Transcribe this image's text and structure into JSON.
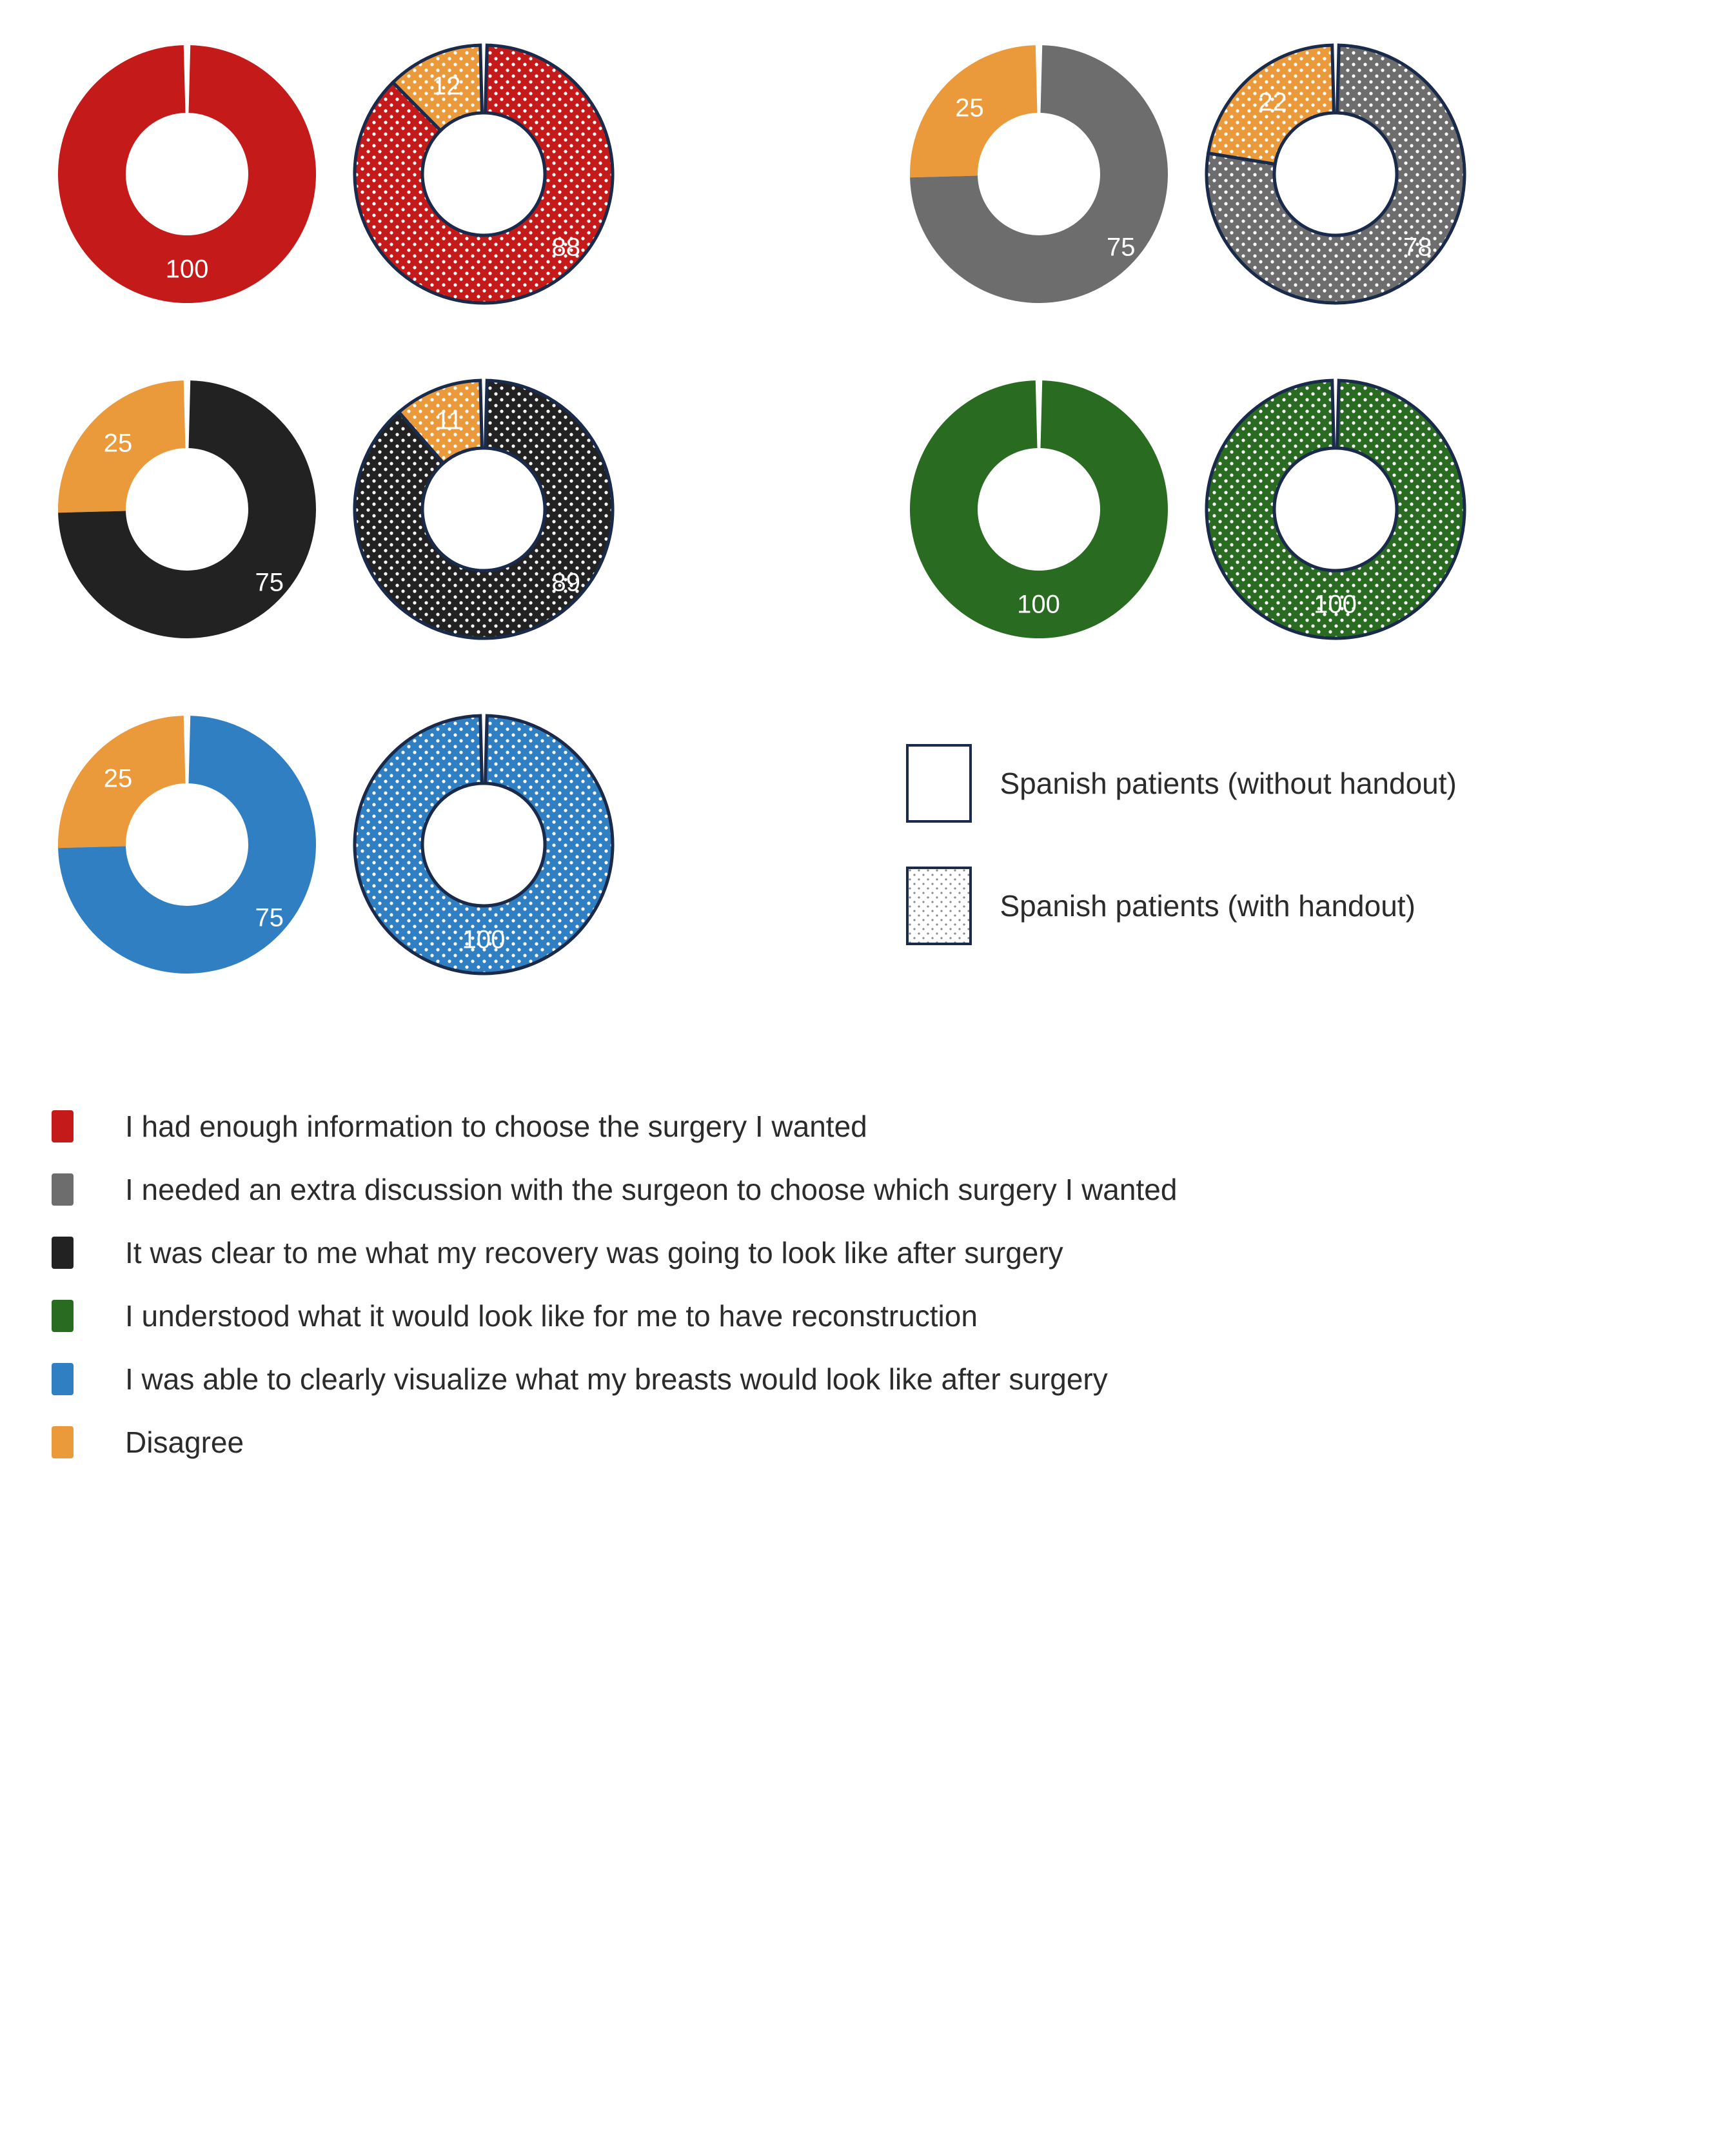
{
  "colors": {
    "red": "#c51a1a",
    "gray": "#6d6d6d",
    "black": "#222222",
    "green": "#2a6b22",
    "blue": "#2f7fc2",
    "orange": "#eb9a3b",
    "outline_dark": "#1a2a4a",
    "white": "#ffffff",
    "text": "#2b2b2b"
  },
  "donut_geometry": {
    "outer_radius": 200,
    "inner_radius": 95,
    "gap_deg": 3
  },
  "typography": {
    "value_label_fontsize": 40,
    "legend_fontsize": 46
  },
  "pairs": [
    {
      "id": "red",
      "color_key": "red",
      "plain": {
        "agree": 100,
        "disagree": 0
      },
      "dotted": {
        "agree": 88,
        "disagree": 12
      }
    },
    {
      "id": "gray",
      "color_key": "gray",
      "plain": {
        "agree": 75,
        "disagree": 25
      },
      "dotted": {
        "agree": 78,
        "disagree": 22
      }
    },
    {
      "id": "black",
      "color_key": "black",
      "plain": {
        "agree": 75,
        "disagree": 25
      },
      "dotted": {
        "agree": 89,
        "disagree": 11
      }
    },
    {
      "id": "green",
      "color_key": "green",
      "plain": {
        "agree": 100,
        "disagree": 0
      },
      "dotted": {
        "agree": 100,
        "disagree": 0
      }
    },
    {
      "id": "blue",
      "color_key": "blue",
      "plain": {
        "agree": 75,
        "disagree": 25
      },
      "dotted": {
        "agree": 100,
        "disagree": 0
      }
    }
  ],
  "side_legend": {
    "plain_label": "Spanish patients (without handout)",
    "dotted_label": "Spanish patients (with handout)"
  },
  "bottom_legend": [
    {
      "color_key": "red",
      "text": "I had enough information to choose the surgery I wanted"
    },
    {
      "color_key": "gray",
      "text": "I needed an extra discussion with the surgeon to choose which surgery I wanted"
    },
    {
      "color_key": "black",
      "text": "It was clear to me what my recovery was going to look like after surgery"
    },
    {
      "color_key": "green",
      "text": " I understood what it would look like for me to have reconstruction"
    },
    {
      "color_key": "blue",
      "text": "I was able to clearly visualize what my breasts would look like after surgery"
    },
    {
      "color_key": "orange",
      "text": "Disagree"
    }
  ]
}
